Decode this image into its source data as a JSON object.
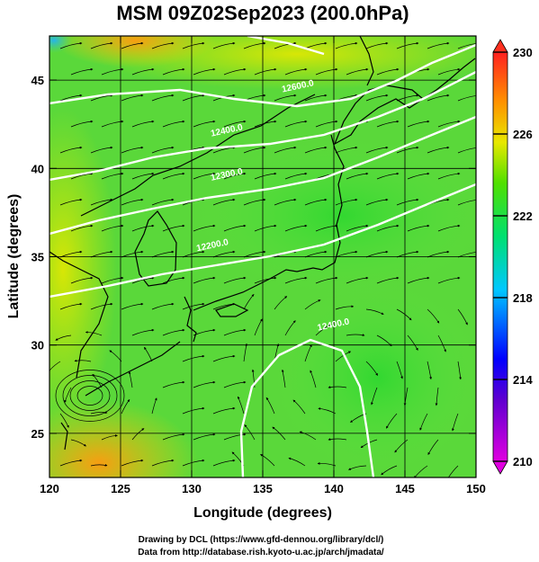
{
  "title": "MSM 09Z02Sep2023 (200.0hPa)",
  "x_axis": {
    "label": "Longitude (degrees)",
    "range": [
      120,
      150
    ],
    "ticks": [
      "120",
      "125",
      "130",
      "135",
      "140",
      "145",
      "150"
    ]
  },
  "y_axis": {
    "label": "Latitude  (degrees)",
    "range": [
      22.5,
      47.5
    ],
    "ticks": [
      "25",
      "30",
      "35",
      "40",
      "45"
    ]
  },
  "colorbar": {
    "range": [
      210,
      230
    ],
    "ticks": [
      "210",
      "214",
      "218",
      "222",
      "226",
      "230"
    ],
    "colors": [
      "#e000e0",
      "#0000ff",
      "#00d8ff",
      "#00e060",
      "#e8e800",
      "#ff8000",
      "#ff2020"
    ]
  },
  "contour_labels": [
    {
      "text": "12600.0",
      "lon": 137.5,
      "lat": 44.5
    },
    {
      "text": "12400.0",
      "lon": 132.5,
      "lat": 42.0
    },
    {
      "text": "12300.0",
      "lon": 132.5,
      "lat": 39.5
    },
    {
      "text": "12200.0",
      "lon": 131.5,
      "lat": 35.5
    },
    {
      "text": "12400.0",
      "lon": 140.0,
      "lat": 31.0
    }
  ],
  "credits": {
    "line1": "Drawing by DCL (https://www.gfd-dennou.org/library/dcl/)",
    "line2": "Data from http://database.rish.kyoto-u.ac.jp/arch/jmadata/"
  }
}
